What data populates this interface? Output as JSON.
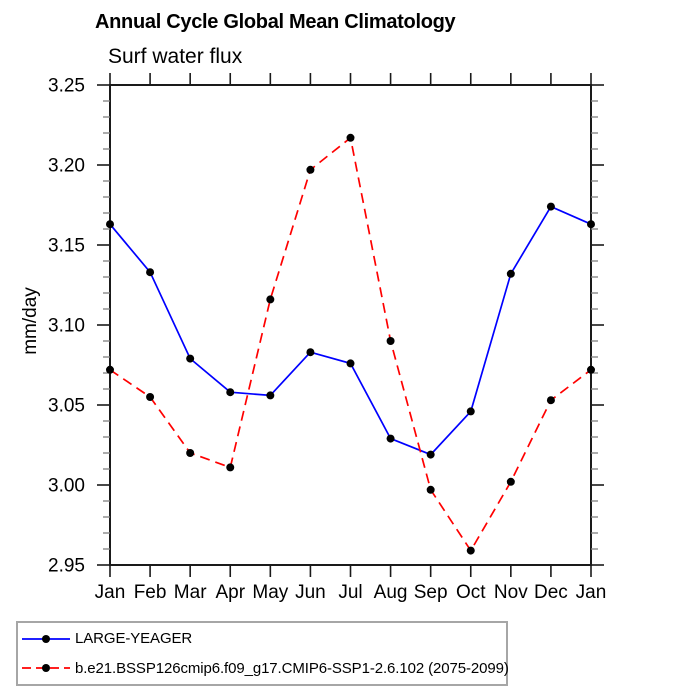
{
  "title": "Annual Cycle Global Mean Climatology",
  "subtitle": "Surf water flux",
  "ylabel": "mm/day",
  "colors": {
    "series_blue": "#0000ff",
    "series_red": "#ff0000",
    "marker": "#000000",
    "axis": "#1a1a1a",
    "minor_tick": "#808080",
    "legend_border": "#a6a6a6",
    "background": "#ffffff"
  },
  "chart_data": {
    "type": "line",
    "title": "Annual Cycle Global Mean Climatology",
    "subtitle": "Surf water flux",
    "xlabel": "",
    "ylabel": "mm/day",
    "x_categories": [
      "Jan",
      "Feb",
      "Mar",
      "Apr",
      "May",
      "Jun",
      "Jul",
      "Aug",
      "Sep",
      "Oct",
      "Nov",
      "Dec",
      "Jan"
    ],
    "ylim": [
      2.95,
      3.25
    ],
    "y_major_step": 0.05,
    "y_minor_step": 0.01,
    "y_tick_labels": [
      "3.25",
      "3.20",
      "3.15",
      "3.10",
      "3.05",
      "3.00",
      "2.95"
    ],
    "grid": false,
    "legend_position": "bottom-left-box",
    "series": [
      {
        "name": "LARGE-YEAGER",
        "color": "#0000ff",
        "line_style": "solid",
        "marker": "filled-circle",
        "marker_color": "#000000",
        "values": [
          3.163,
          3.133,
          3.079,
          3.058,
          3.056,
          3.083,
          3.076,
          3.029,
          3.019,
          3.046,
          3.132,
          3.174,
          3.163
        ]
      },
      {
        "name": "b.e21.BSSP126cmip6.f09_g17.CMIP6-SSP1-2.6.102 (2075-2099)",
        "color": "#ff0000",
        "line_style": "dashed",
        "marker": "filled-circle",
        "marker_color": "#000000",
        "values": [
          3.072,
          3.055,
          3.02,
          3.011,
          3.116,
          3.197,
          3.217,
          3.09,
          2.997,
          2.959,
          3.002,
          3.053,
          3.072
        ]
      }
    ]
  }
}
